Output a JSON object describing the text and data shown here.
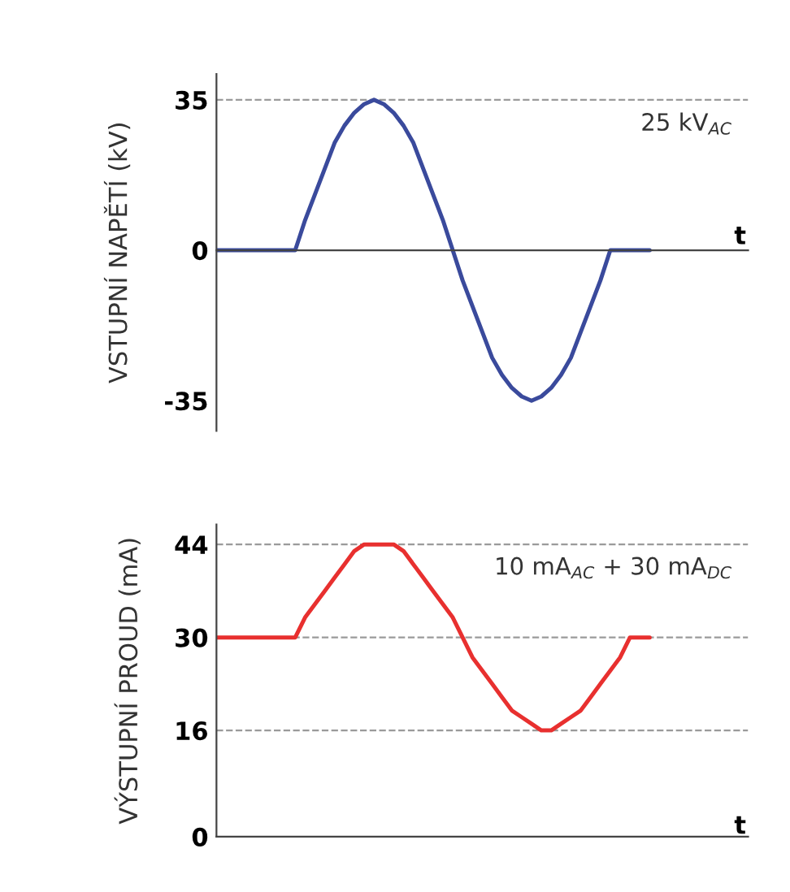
{
  "chart_data": [
    {
      "type": "line",
      "ylabel": "VSTUPNÍ NAPĚTÍ (kV)",
      "xlabel": "t",
      "ylim": [
        -42,
        41
      ],
      "yticks": [
        -35,
        0,
        35
      ],
      "tick_labels": "y",
      "categories": [
        null,
        null,
        null,
        null,
        null,
        null,
        null,
        null,
        null,
        null,
        null,
        null,
        null,
        null,
        null,
        null,
        null,
        null,
        null,
        null,
        null,
        null,
        null,
        null,
        null,
        null,
        null,
        null,
        null,
        null,
        null,
        null,
        null,
        null,
        null,
        null,
        null,
        null,
        null,
        null,
        null,
        null,
        null,
        null,
        null,
        null,
        null,
        null,
        null,
        null,
        null,
        null,
        null,
        null,
        null
      ],
      "series": [
        {
          "color": "#3a4a9c",
          "values": [
            0,
            0,
            0,
            0,
            0,
            0,
            0,
            0,
            0,
            7,
            13,
            19,
            25,
            29,
            32,
            34,
            35,
            34,
            32,
            29,
            25,
            19,
            13,
            7,
            0,
            -7,
            -13,
            -19,
            -25,
            -29,
            -32,
            -34,
            -35,
            -34,
            -32,
            -29,
            -25,
            -19,
            -13,
            -7,
            0,
            0,
            0,
            0,
            0,
            null,
            null,
            null,
            null,
            null,
            null,
            null,
            null,
            null,
            null
          ]
        }
      ],
      "ref_lines": [
        {
          "axis": "y",
          "value": 35,
          "color": "#9a9a9a",
          "line_style": "dashed"
        }
      ],
      "annotations": [
        "25 kV$_{AC}$"
      ]
    },
    {
      "type": "line",
      "ylabel": "VÝSTUPNÍ PROUD (mA)",
      "xlabel": "t",
      "ylim": [
        0,
        47
      ],
      "yticks": [
        0,
        16,
        30,
        44
      ],
      "tick_labels": "y",
      "categories": [
        null,
        null,
        null,
        null,
        null,
        null,
        null,
        null,
        null,
        null,
        null,
        null,
        null,
        null,
        null,
        null,
        null,
        null,
        null,
        null,
        null,
        null,
        null,
        null,
        null,
        null,
        null,
        null,
        null,
        null,
        null,
        null,
        null,
        null,
        null,
        null,
        null,
        null,
        null,
        null,
        null,
        null,
        null,
        null,
        null,
        null,
        null,
        null,
        null,
        null,
        null,
        null,
        null,
        null,
        null
      ],
      "series": [
        {
          "color": "#e8302f",
          "values": [
            30,
            30,
            30,
            30,
            30,
            30,
            30,
            30,
            30,
            33,
            35,
            37,
            39,
            41,
            43,
            44,
            44,
            44,
            44,
            43,
            41,
            39,
            37,
            35,
            33,
            30,
            27,
            25,
            23,
            21,
            19,
            18,
            17,
            16,
            16,
            17,
            18,
            19,
            21,
            23,
            25,
            27,
            30,
            30,
            30,
            null,
            null,
            null,
            null,
            null,
            null,
            null,
            null,
            null,
            null
          ]
        }
      ],
      "ref_lines": [
        {
          "axis": "y",
          "value": 44,
          "color": "#9a9a9a",
          "line_style": "dashed"
        },
        {
          "axis": "y",
          "value": 30,
          "color": "#9a9a9a",
          "line_style": "dashed"
        },
        {
          "axis": "y",
          "value": 16,
          "color": "#9a9a9a",
          "line_style": "dashed"
        }
      ],
      "annotations": [
        "10 mA$_{AC}$ + 30 mA$_{DC}$"
      ]
    }
  ]
}
